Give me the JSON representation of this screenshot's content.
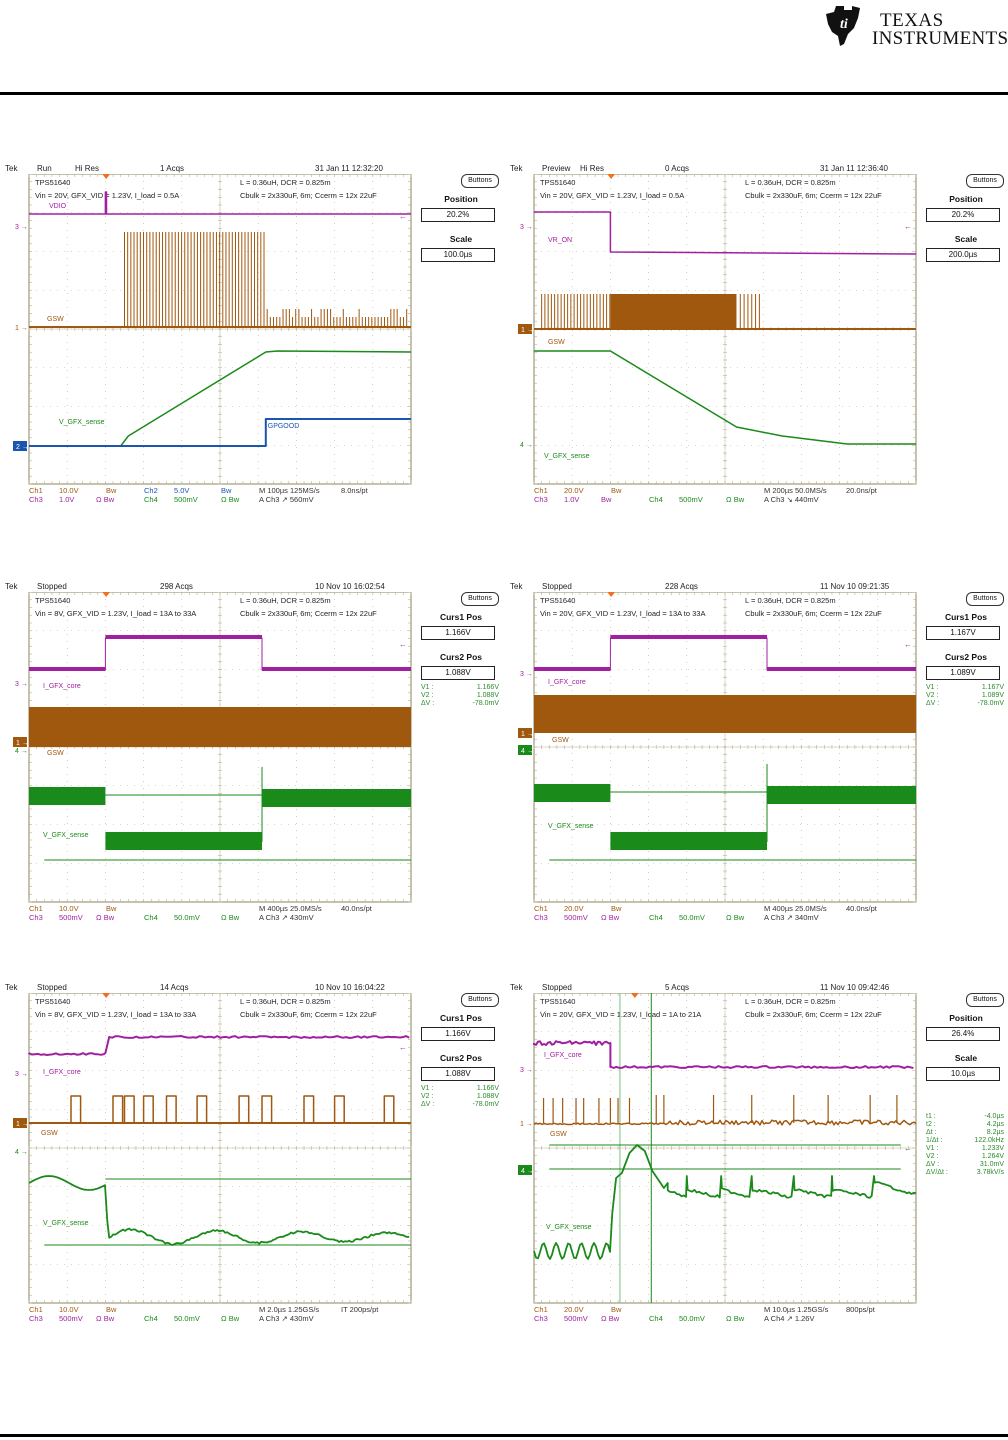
{
  "logo": {
    "line1": "Texas",
    "line2": "Instruments",
    "icon": "ti-logo-icon"
  },
  "colors": {
    "ch1": "#a0570e",
    "ch2": "#1a55b0",
    "ch3": "#a020a0",
    "ch4": "#1a8a1a",
    "grid": "#b8b090",
    "frame": "#8c8460"
  },
  "scopes": [
    {
      "tek": "Tek",
      "mode": "Run",
      "acq_mode": "Hi Res",
      "acqs": "1 Acqs",
      "datetime": "31 Jan 11 12:32:20",
      "title": "TPS51640",
      "cond": "Vin = 20V, GFX_VID = 1.23V, I_load = 0.5A",
      "lc": "L = 0.36uH, DCR = 0.825m",
      "caps": "Cbulk = 2x330uF, 6m;   Ccerm = 12x 22uF",
      "buttons": "Buttons",
      "side": [
        {
          "label": "Position",
          "value": "20.2%"
        },
        {
          "label": "Scale",
          "value": "100.0µs"
        }
      ],
      "meas": [],
      "traces": {
        "ch3_label": "VDIO",
        "ch1_label": "GSW",
        "ch4_label": "V_GFX_sense",
        "ch2_label": "GPGOOD"
      },
      "markers": {
        "ch3": "3",
        "ch1": "1",
        "ch2": "2"
      },
      "foot": {
        "r1": [
          "Ch1",
          "10.0V",
          "Bw",
          "Ch2",
          "5.0V",
          "Bw",
          "M 100µs 125MS/s",
          "8.0ns/pt"
        ],
        "r2": [
          "Ch3",
          "1.0V",
          "Ω Bw",
          "Ch4",
          "500mV",
          "Ω Bw",
          "A  Ch3  ↗  560mV"
        ]
      }
    },
    {
      "tek": "Tek",
      "mode": "Preview",
      "acq_mode": "Hi Res",
      "acqs": "0 Acqs",
      "datetime": "31 Jan 11 12:36:40",
      "title": "TPS51640",
      "cond": "Vin = 20V, GFX_VID = 1.23V, I_load = 0.5A",
      "lc": "L = 0.36uH, DCR = 0.825m",
      "caps": "Cbulk = 2x330uF, 6m;   Ccerm = 12x 22uF",
      "buttons": "Buttons",
      "side": [
        {
          "label": "Position",
          "value": "20.2%"
        },
        {
          "label": "Scale",
          "value": "200.0µs"
        }
      ],
      "meas": [],
      "traces": {
        "ch3_label": "VR_ON",
        "ch1_label": "GSW",
        "ch4_label": "V_GFX_sense"
      },
      "markers": {
        "ch3": "3",
        "ch1": "1",
        "ch4": "4"
      },
      "foot": {
        "r1": [
          "Ch1",
          "20.0V",
          "Bw",
          "",
          "",
          "",
          "M 200µs 50.0MS/s",
          "20.0ns/pt"
        ],
        "r2": [
          "Ch3",
          "1.0V",
          "Bw",
          "Ch4",
          "500mV",
          "Ω Bw",
          "A  Ch3  ↘  440mV"
        ]
      }
    },
    {
      "tek": "Tek",
      "mode": "Stopped",
      "acq_mode": "",
      "acqs": "298 Acqs",
      "datetime": "10 Nov 10 16:02:54",
      "title": "TPS51640",
      "cond": "Vin = 8V, GFX_VID = 1.23V, I_load = 13A to 33A",
      "lc": "L = 0.36uH, DCR = 0.825m",
      "caps": "Cbulk = 2x330uF, 6m;   Ccerm = 12x 22uF",
      "buttons": "Buttons",
      "side": [
        {
          "label": "Curs1 Pos",
          "value": "1.166V"
        },
        {
          "label": "Curs2 Pos",
          "value": "1.088V"
        }
      ],
      "meas": [
        [
          "V1 :",
          "1.166V"
        ],
        [
          "V2 :",
          "1.088V"
        ],
        [
          "ΔV :",
          "-78.0mV"
        ]
      ],
      "traces": {
        "ch3_label": "I_GFX_core",
        "ch1_label": "GSW",
        "ch4_label": "V_GFX_sense"
      },
      "markers": {
        "ch3": "3",
        "ch1": "1",
        "ch4": "4"
      },
      "foot": {
        "r1": [
          "Ch1",
          "10.0V",
          "Bw",
          "",
          "",
          "",
          "M 400µs 25.0MS/s",
          "40.0ns/pt"
        ],
        "r2": [
          "Ch3",
          "500mV",
          "Ω Bw",
          "Ch4",
          "50.0mV",
          "Ω Bw",
          "A  Ch3  ↗  430mV"
        ]
      }
    },
    {
      "tek": "Tek",
      "mode": "Stopped",
      "acq_mode": "",
      "acqs": "228 Acqs",
      "datetime": "11 Nov 10 09:21:35",
      "title": "TPS51640",
      "cond": "Vin = 20V, GFX_VID = 1.23V, I_load = 13A to 33A",
      "lc": "L = 0.36uH, DCR = 0.825m",
      "caps": "Cbulk = 2x330uF, 6m;   Ccerm = 12x 22uF",
      "buttons": "Buttons",
      "side": [
        {
          "label": "Curs1 Pos",
          "value": "1.167V"
        },
        {
          "label": "Curs2 Pos",
          "value": "1.089V"
        }
      ],
      "meas": [
        [
          "V1 :",
          "1.167V"
        ],
        [
          "V2 :",
          "1.089V"
        ],
        [
          "ΔV :",
          "-78.0mV"
        ]
      ],
      "traces": {
        "ch3_label": "I_GFX_core",
        "ch1_label": "GSW",
        "ch4_label": "V_GFX_sense"
      },
      "markers": {
        "ch3": "3",
        "ch1": "1",
        "ch4": "4"
      },
      "foot": {
        "r1": [
          "Ch1",
          "20.0V",
          "Bw",
          "",
          "",
          "",
          "M 400µs 25.0MS/s",
          "40.0ns/pt"
        ],
        "r2": [
          "Ch3",
          "500mV",
          "Ω Bw",
          "Ch4",
          "50.0mV",
          "Ω Bw",
          "A  Ch3  ↗  340mV"
        ]
      }
    },
    {
      "tek": "Tek",
      "mode": "Stopped",
      "acq_mode": "",
      "acqs": "14 Acqs",
      "datetime": "10 Nov 10 16:04:22",
      "title": "TPS51640",
      "cond": "Vin = 8V, GFX_VID = 1.23V, I_load = 13A to 33A",
      "lc": "L = 0.36uH, DCR = 0.825m",
      "caps": "Cbulk = 2x330uF, 6m;   Ccerm = 12x 22uF",
      "buttons": "Buttons",
      "side": [
        {
          "label": "Curs1 Pos",
          "value": "1.166V"
        },
        {
          "label": "Curs2 Pos",
          "value": "1.088V"
        }
      ],
      "meas": [
        [
          "V1 :",
          "1.166V"
        ],
        [
          "V2 :",
          "1.088V"
        ],
        [
          "ΔV :",
          "-78.0mV"
        ]
      ],
      "traces": {
        "ch3_label": "I_GFX_core",
        "ch1_label": "GSW",
        "ch4_label": "V_GFX_sense"
      },
      "markers": {
        "ch3": "3",
        "ch1": "1",
        "ch4": "4"
      },
      "foot": {
        "r1": [
          "Ch1",
          "10.0V",
          "Bw",
          "",
          "",
          "",
          "M 2.0µs 1.25GS/s",
          "IT 200ps/pt"
        ],
        "r2": [
          "Ch3",
          "500mV",
          "Ω Bw",
          "Ch4",
          "50.0mV",
          "Ω Bw",
          "A  Ch3  ↗  430mV"
        ]
      }
    },
    {
      "tek": "Tek",
      "mode": "Stopped",
      "acq_mode": "",
      "acqs": "5 Acqs",
      "datetime": "11 Nov 10 09:42:46",
      "title": "TPS51640",
      "cond": "Vin = 20V, GFX_VID = 1.23V, I_load = 1A to 21A",
      "lc": "L = 0.36uH, DCR = 0.825m",
      "caps": "Cbulk = 2x330uF, 6m;   Ccerm = 12x 22uF",
      "buttons": "Buttons",
      "side": [
        {
          "label": "Position",
          "value": "26.4%"
        },
        {
          "label": "Scale",
          "value": "10.0µs"
        }
      ],
      "meas": [
        [
          "t1 :",
          "-4.0µs"
        ],
        [
          "t2 :",
          "4.2µs"
        ],
        [
          "Δt :",
          "8.2µs"
        ],
        [
          "1/Δt :",
          "122.0kHz"
        ],
        [
          "V1 :",
          "1.233V"
        ],
        [
          "V2 :",
          "1.264V"
        ],
        [
          "ΔV :",
          "31.0mV"
        ],
        [
          "ΔV/Δt :",
          "3.78kV/s"
        ]
      ],
      "traces": {
        "ch3_label": "I_GFX_core",
        "ch1_label": "GSW",
        "ch4_label": "V_GFX_sense"
      },
      "markers": {
        "ch3": "3",
        "ch1": "1",
        "ch4": "4"
      },
      "foot": {
        "r1": [
          "Ch1",
          "20.0V",
          "Bw",
          "",
          "",
          "",
          "M 10.0µs 1.25GS/s",
          "800ps/pt"
        ],
        "r2": [
          "Ch3",
          "500mV",
          "Ω Bw",
          "Ch4",
          "50.0mV",
          "Ω Bw",
          "A  Ch4  ↗  1.26V"
        ]
      }
    }
  ]
}
